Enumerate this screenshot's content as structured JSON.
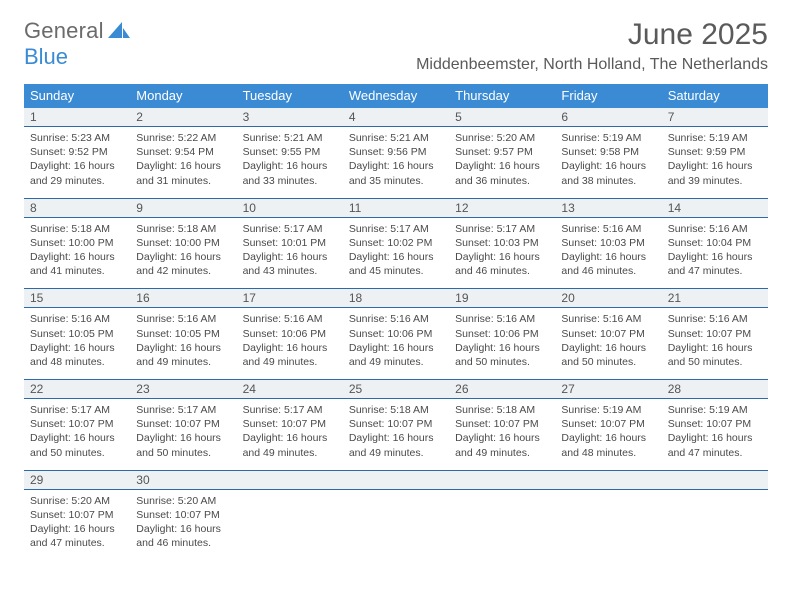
{
  "logo": {
    "text1": "General",
    "text2": "Blue"
  },
  "title": "June 2025",
  "location": "Middenbeemster, North Holland, The Netherlands",
  "day_names": [
    "Sunday",
    "Monday",
    "Tuesday",
    "Wednesday",
    "Thursday",
    "Friday",
    "Saturday"
  ],
  "colors": {
    "header_bg": "#3b8bd4",
    "header_text": "#ffffff",
    "rule": "#2f6aa8",
    "daynum_bg": "#eef1f3",
    "text": "#4a4a4a",
    "logo_gray": "#6b6b6b",
    "logo_blue": "#3b8bd4"
  },
  "weeks": [
    [
      {
        "n": "1",
        "sr": "5:23 AM",
        "ss": "9:52 PM",
        "dl": "16 hours and 29 minutes."
      },
      {
        "n": "2",
        "sr": "5:22 AM",
        "ss": "9:54 PM",
        "dl": "16 hours and 31 minutes."
      },
      {
        "n": "3",
        "sr": "5:21 AM",
        "ss": "9:55 PM",
        "dl": "16 hours and 33 minutes."
      },
      {
        "n": "4",
        "sr": "5:21 AM",
        "ss": "9:56 PM",
        "dl": "16 hours and 35 minutes."
      },
      {
        "n": "5",
        "sr": "5:20 AM",
        "ss": "9:57 PM",
        "dl": "16 hours and 36 minutes."
      },
      {
        "n": "6",
        "sr": "5:19 AM",
        "ss": "9:58 PM",
        "dl": "16 hours and 38 minutes."
      },
      {
        "n": "7",
        "sr": "5:19 AM",
        "ss": "9:59 PM",
        "dl": "16 hours and 39 minutes."
      }
    ],
    [
      {
        "n": "8",
        "sr": "5:18 AM",
        "ss": "10:00 PM",
        "dl": "16 hours and 41 minutes."
      },
      {
        "n": "9",
        "sr": "5:18 AM",
        "ss": "10:00 PM",
        "dl": "16 hours and 42 minutes."
      },
      {
        "n": "10",
        "sr": "5:17 AM",
        "ss": "10:01 PM",
        "dl": "16 hours and 43 minutes."
      },
      {
        "n": "11",
        "sr": "5:17 AM",
        "ss": "10:02 PM",
        "dl": "16 hours and 45 minutes."
      },
      {
        "n": "12",
        "sr": "5:17 AM",
        "ss": "10:03 PM",
        "dl": "16 hours and 46 minutes."
      },
      {
        "n": "13",
        "sr": "5:16 AM",
        "ss": "10:03 PM",
        "dl": "16 hours and 46 minutes."
      },
      {
        "n": "14",
        "sr": "5:16 AM",
        "ss": "10:04 PM",
        "dl": "16 hours and 47 minutes."
      }
    ],
    [
      {
        "n": "15",
        "sr": "5:16 AM",
        "ss": "10:05 PM",
        "dl": "16 hours and 48 minutes."
      },
      {
        "n": "16",
        "sr": "5:16 AM",
        "ss": "10:05 PM",
        "dl": "16 hours and 49 minutes."
      },
      {
        "n": "17",
        "sr": "5:16 AM",
        "ss": "10:06 PM",
        "dl": "16 hours and 49 minutes."
      },
      {
        "n": "18",
        "sr": "5:16 AM",
        "ss": "10:06 PM",
        "dl": "16 hours and 49 minutes."
      },
      {
        "n": "19",
        "sr": "5:16 AM",
        "ss": "10:06 PM",
        "dl": "16 hours and 50 minutes."
      },
      {
        "n": "20",
        "sr": "5:16 AM",
        "ss": "10:07 PM",
        "dl": "16 hours and 50 minutes."
      },
      {
        "n": "21",
        "sr": "5:16 AM",
        "ss": "10:07 PM",
        "dl": "16 hours and 50 minutes."
      }
    ],
    [
      {
        "n": "22",
        "sr": "5:17 AM",
        "ss": "10:07 PM",
        "dl": "16 hours and 50 minutes."
      },
      {
        "n": "23",
        "sr": "5:17 AM",
        "ss": "10:07 PM",
        "dl": "16 hours and 50 minutes."
      },
      {
        "n": "24",
        "sr": "5:17 AM",
        "ss": "10:07 PM",
        "dl": "16 hours and 49 minutes."
      },
      {
        "n": "25",
        "sr": "5:18 AM",
        "ss": "10:07 PM",
        "dl": "16 hours and 49 minutes."
      },
      {
        "n": "26",
        "sr": "5:18 AM",
        "ss": "10:07 PM",
        "dl": "16 hours and 49 minutes."
      },
      {
        "n": "27",
        "sr": "5:19 AM",
        "ss": "10:07 PM",
        "dl": "16 hours and 48 minutes."
      },
      {
        "n": "28",
        "sr": "5:19 AM",
        "ss": "10:07 PM",
        "dl": "16 hours and 47 minutes."
      }
    ],
    [
      {
        "n": "29",
        "sr": "5:20 AM",
        "ss": "10:07 PM",
        "dl": "16 hours and 47 minutes."
      },
      {
        "n": "30",
        "sr": "5:20 AM",
        "ss": "10:07 PM",
        "dl": "16 hours and 46 minutes."
      },
      null,
      null,
      null,
      null,
      null
    ]
  ],
  "labels": {
    "sunrise": "Sunrise: ",
    "sunset": "Sunset: ",
    "daylight": "Daylight: "
  }
}
